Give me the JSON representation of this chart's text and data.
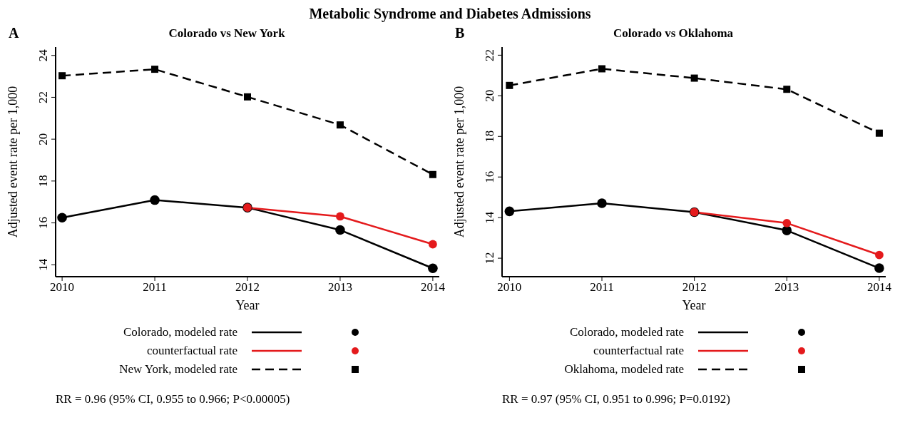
{
  "chart_data": [
    {
      "type": "line",
      "title": "Metabolic Syndrome and Diabetes Admissions",
      "subtitle": "Colorado vs New York",
      "xlabel": "Year",
      "ylabel": "Adjusted event rate per 1,000",
      "x": [
        2010,
        2011,
        2012,
        2013,
        2014
      ],
      "xlim": [
        2009.93,
        2014.07
      ],
      "xticks": [
        2010,
        2011,
        2012,
        2013,
        2014
      ],
      "ylim": [
        13.43,
        24.4
      ],
      "yticks": [
        14,
        16,
        18,
        20,
        22,
        24
      ],
      "legend": "bottom",
      "annotations": [
        "A",
        "RR = 0.96 (95% CI, 0.955 to 0.966; P<0.00005)"
      ],
      "series": [
        {
          "name": "Colorado, modeled rate",
          "color": "#000000",
          "line_style": "solid",
          "marker": "circle",
          "values": [
            16.25,
            17.09,
            16.73,
            15.66,
            13.83
          ]
        },
        {
          "name": "counterfactual rate",
          "color": "#e41a1c",
          "line_style": "solid",
          "marker": "circle",
          "values": [
            null,
            null,
            16.73,
            16.31,
            14.98
          ]
        },
        {
          "name": "New York, modeled rate",
          "color": "#000000",
          "line_style": "dashed",
          "marker": "square",
          "values": [
            23.03,
            23.34,
            22.02,
            20.68,
            18.31
          ]
        }
      ]
    },
    {
      "type": "line",
      "subtitle": "Colorado vs Oklahoma",
      "xlabel": "Year",
      "ylabel": "Adjusted event rate per 1,000",
      "x": [
        2010,
        2011,
        2012,
        2013,
        2014
      ],
      "xlim": [
        2009.92,
        2014.07
      ],
      "xticks": [
        2010,
        2011,
        2012,
        2013,
        2014
      ],
      "ylim": [
        11.09,
        22.4
      ],
      "yticks": [
        12,
        14,
        16,
        18,
        20,
        22
      ],
      "legend": "bottom",
      "annotations": [
        "B",
        "RR = 0.97 (95% CI, 0.951 to 0.996; P=0.0192)"
      ],
      "series": [
        {
          "name": "Colorado, modeled rate",
          "color": "#000000",
          "line_style": "solid",
          "marker": "circle",
          "values": [
            14.31,
            14.71,
            14.27,
            13.37,
            11.51
          ]
        },
        {
          "name": "counterfactual rate",
          "color": "#e41a1c",
          "line_style": "solid",
          "marker": "circle",
          "values": [
            null,
            null,
            14.27,
            13.73,
            12.16
          ]
        },
        {
          "name": "Oklahoma, modeled rate",
          "color": "#000000",
          "line_style": "dashed",
          "marker": "square",
          "values": [
            20.51,
            21.33,
            20.87,
            20.32,
            18.16
          ]
        }
      ]
    }
  ]
}
